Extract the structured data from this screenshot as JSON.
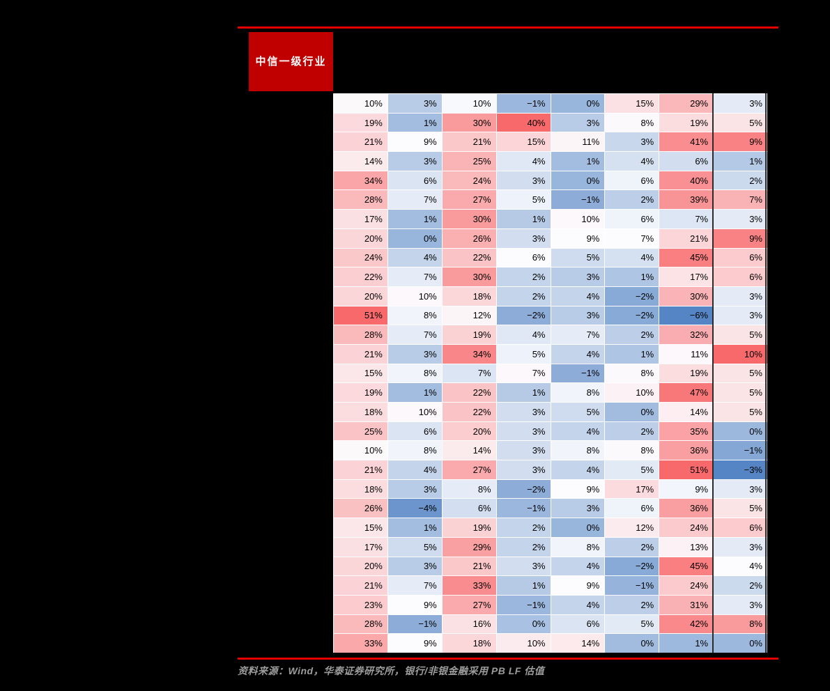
{
  "header": {
    "row_label_header": "中信一级行业"
  },
  "footer": {
    "source_note": "资料来源：Wind，华泰证券研究所，银行/非银金融采用 PB LF 估值"
  },
  "colors": {
    "page_background": "#000000",
    "accent_rule": "#E60000",
    "header_box_fill": "#C00000",
    "header_box_text": "#FFFFFF",
    "gridline": "#FFFFFF",
    "cell_text": "#000000",
    "column_divider": "#2B2B2B",
    "source_text": "#9C9C9C",
    "scale_blue": "#5585C4",
    "scale_white": "#FCFCFF",
    "scale_red": "#F8696B"
  },
  "chart_data": {
    "type": "heatmap",
    "title": "",
    "row_label_header": "中信一级行业",
    "unit": "%",
    "n_rows": 29,
    "n_cols": 8,
    "rows": [
      [
        10,
        3,
        10,
        -1,
        0,
        15,
        29,
        3
      ],
      [
        19,
        1,
        30,
        40,
        3,
        8,
        19,
        5
      ],
      [
        21,
        9,
        21,
        15,
        11,
        3,
        41,
        9
      ],
      [
        14,
        3,
        25,
        4,
        1,
        4,
        6,
        1
      ],
      [
        34,
        6,
        24,
        3,
        0,
        6,
        40,
        2
      ],
      [
        28,
        7,
        27,
        5,
        -1,
        2,
        39,
        7
      ],
      [
        17,
        1,
        30,
        1,
        10,
        6,
        7,
        3
      ],
      [
        20,
        0,
        26,
        3,
        9,
        7,
        21,
        9
      ],
      [
        24,
        4,
        22,
        6,
        5,
        4,
        45,
        6
      ],
      [
        22,
        7,
        30,
        2,
        3,
        1,
        17,
        6
      ],
      [
        20,
        10,
        18,
        2,
        4,
        -2,
        30,
        3
      ],
      [
        51,
        8,
        12,
        -2,
        3,
        -2,
        -6,
        3
      ],
      [
        28,
        7,
        19,
        4,
        7,
        2,
        32,
        5
      ],
      [
        21,
        3,
        34,
        5,
        4,
        1,
        11,
        10
      ],
      [
        15,
        8,
        7,
        7,
        -1,
        8,
        19,
        5
      ],
      [
        19,
        1,
        22,
        1,
        8,
        10,
        47,
        5
      ],
      [
        18,
        10,
        22,
        3,
        5,
        0,
        14,
        5
      ],
      [
        25,
        6,
        20,
        3,
        4,
        2,
        35,
        0
      ],
      [
        10,
        8,
        14,
        3,
        8,
        8,
        36,
        -1
      ],
      [
        21,
        4,
        27,
        3,
        4,
        5,
        51,
        -3
      ],
      [
        18,
        3,
        8,
        -2,
        9,
        17,
        9,
        3
      ],
      [
        26,
        -4,
        6,
        -1,
        3,
        6,
        36,
        5
      ],
      [
        15,
        1,
        19,
        2,
        0,
        12,
        24,
        6
      ],
      [
        17,
        5,
        29,
        2,
        8,
        2,
        13,
        3
      ],
      [
        20,
        3,
        21,
        3,
        4,
        -2,
        45,
        4
      ],
      [
        21,
        7,
        33,
        1,
        9,
        -1,
        24,
        2
      ],
      [
        23,
        9,
        27,
        -1,
        4,
        2,
        31,
        3
      ],
      [
        28,
        -1,
        16,
        0,
        6,
        5,
        42,
        8
      ],
      [
        33,
        9,
        18,
        10,
        14,
        0,
        1,
        0
      ]
    ],
    "column_color_scales": [
      {
        "blue_at": -6,
        "white_at": 9,
        "red_at": 51
      },
      {
        "blue_at": -6,
        "white_at": 9,
        "red_at": 50
      },
      {
        "blue_at": -8,
        "white_at": 10.5,
        "red_at": 40
      },
      {
        "blue_at": -6,
        "white_at": 6,
        "red_at": 40
      },
      {
        "blue_at": -6,
        "white_at": 9,
        "red_at": 50
      },
      {
        "blue_at": -6,
        "white_at": 7,
        "red_at": 51
      },
      {
        "blue_at": -6,
        "white_at": 10,
        "red_at": 51
      },
      {
        "blue_at": -3,
        "white_at": 4,
        "red_at": 10
      }
    ],
    "legend_position": "none",
    "grid": true,
    "dark_divider_before_last_column": true
  }
}
